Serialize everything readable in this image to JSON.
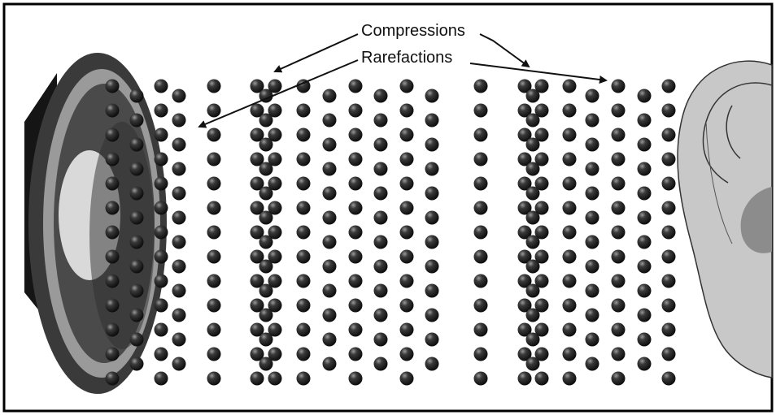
{
  "labels": {
    "compressions": "Compressions",
    "rarefactions": "Rarefactions"
  },
  "colors": {
    "particle": "#1f1f1f",
    "frame": "#000000",
    "speaker_outer": "#3a3a3a",
    "speaker_ring": "#9a9a9a",
    "ear": "#c8c8c8"
  },
  "icons": {
    "source": "speaker-icon",
    "receiver": "ear-icon"
  }
}
